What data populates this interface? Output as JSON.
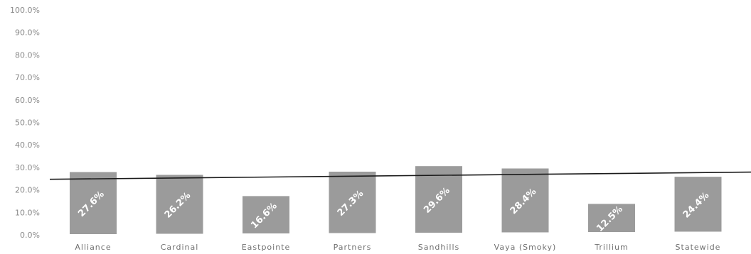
{
  "chart_data": {
    "type": "bar",
    "categories": [
      "Alliance",
      "Cardinal",
      "Eastpointe",
      "Partners",
      "Sandhills",
      "Vaya (Smoky)",
      "Trillium",
      "Statewide"
    ],
    "values": [
      27.6,
      26.2,
      16.6,
      27.3,
      29.6,
      28.4,
      12.5,
      24.4
    ],
    "data_labels": [
      "27.6%",
      "26.2%",
      "16.6%",
      "27.3%",
      "29.6%",
      "28.4%",
      "12.5%",
      "24.4%"
    ],
    "y_ticks": [
      "0.0%",
      "10.0%",
      "20.0%",
      "30.0%",
      "40.0%",
      "50.0%",
      "60.0%",
      "70.0%",
      "80.0%",
      "90.0%",
      "100.0%"
    ],
    "ylim": [
      0,
      100
    ],
    "reference_line": {
      "start": 24.7,
      "end": 27.9
    },
    "colors": {
      "bar": "#9b9b9b",
      "line": "#1a1a1a",
      "label": "#ffffff"
    },
    "title": "",
    "xlabel": "",
    "ylabel": "",
    "grid": false,
    "legend": "none"
  }
}
